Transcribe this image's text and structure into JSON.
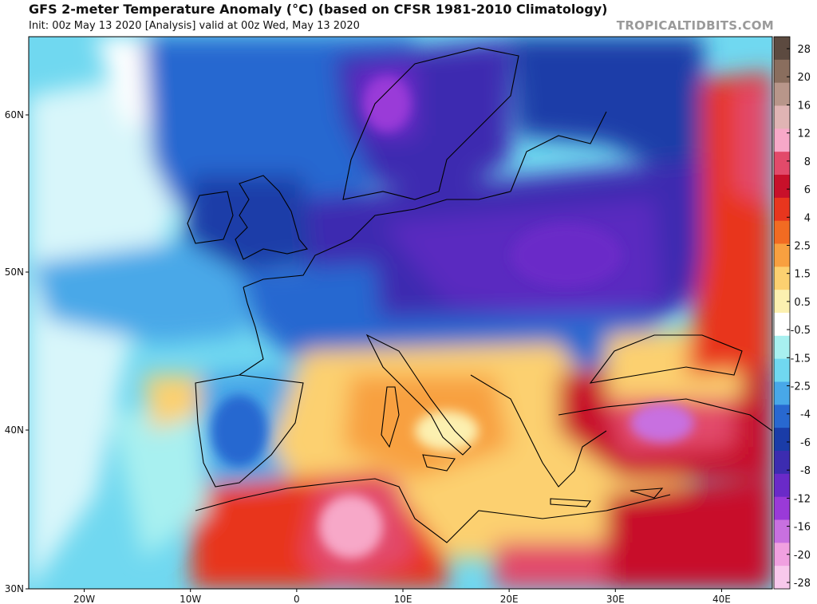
{
  "header": {
    "title": "GFS 2-meter Temperature Anomaly (°C) (based on CFSR 1981-2010 Climatology)",
    "subtitle": "Init: 00z May 13 2020   [Analysis]   valid at 00z Wed, May 13 2020",
    "brand": "TROPICALTIDBITS.COM"
  },
  "map": {
    "lon_range": [
      -25,
      45
    ],
    "lat_range": [
      30,
      65
    ],
    "lat_labels": [
      "60N",
      "50N",
      "40N",
      "30N"
    ],
    "lat_values": [
      60,
      50,
      40,
      30
    ],
    "lon_labels": [
      "20W",
      "10W",
      "0",
      "10E",
      "20E",
      "30E",
      "40E"
    ],
    "lon_values": [
      -20,
      -10,
      0,
      10,
      20,
      30,
      40
    ]
  },
  "colorbar": {
    "labels": [
      "28",
      "20",
      "16",
      "12",
      "8",
      "6",
      "4",
      "2.5",
      "1.5",
      "0.5",
      "-0.5",
      "-1.5",
      "-2.5",
      "-4",
      "-6",
      "-8",
      "-12",
      "-16",
      "-20",
      "-28"
    ],
    "colors": [
      "#5c4a40",
      "#8a6e5e",
      "#b8968a",
      "#e0b4b4",
      "#f7a8c8",
      "#e24a6a",
      "#c8102a",
      "#e8361e",
      "#f26b22",
      "#f8a040",
      "#fcd070",
      "#fcf0b0",
      "#ffffff",
      "#a8f0f0",
      "#70d8f0",
      "#48a8e8",
      "#2868d0",
      "#1a3ca8",
      "#3c2cb0",
      "#6a2ac8",
      "#9a3ad8",
      "#c870e0",
      "#f0a0e0",
      "#f8c8ec"
    ]
  }
}
